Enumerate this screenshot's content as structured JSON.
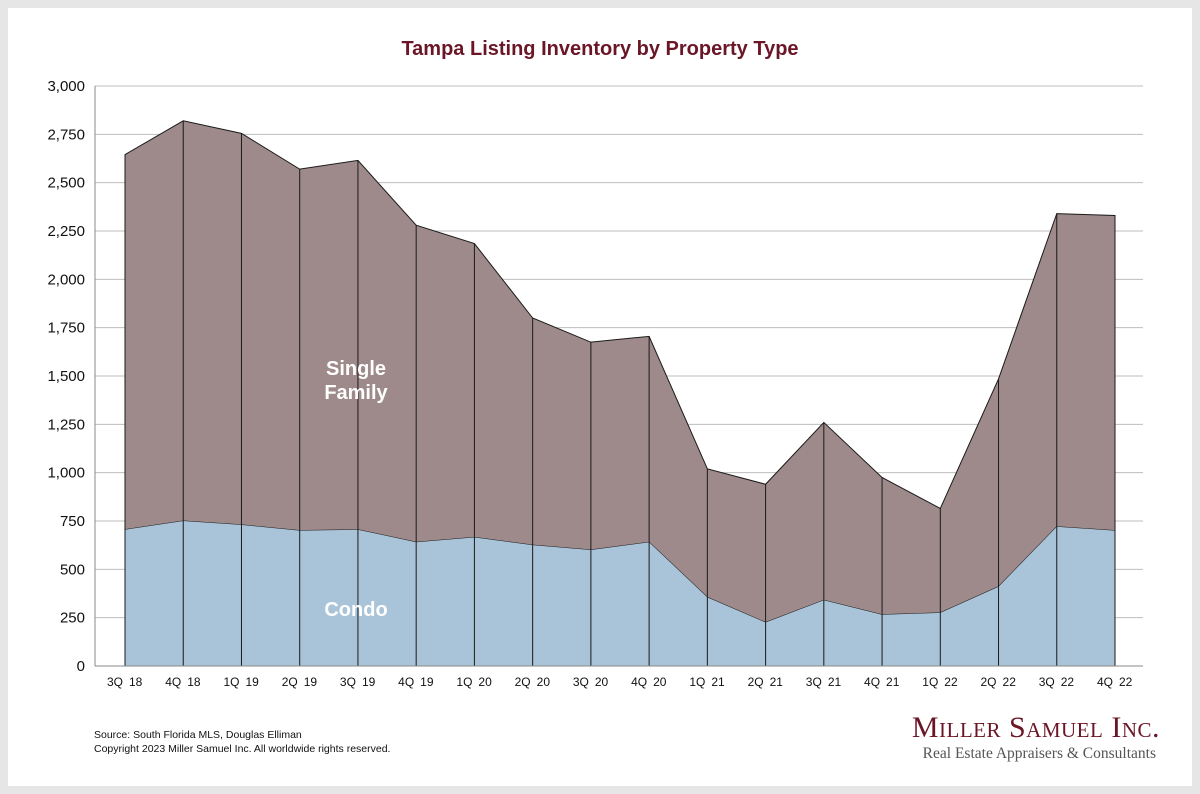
{
  "colors": {
    "single_family": "#9e8a8a",
    "condo": "#a9c4d9",
    "title": "#6b1626",
    "grid": "#bdbdbd",
    "divider": "#1a1a1a"
  },
  "chart_data": {
    "type": "area",
    "stacked": true,
    "title": "Tampa Listing Inventory by Property Type",
    "categories": [
      [
        "3Q",
        "18"
      ],
      [
        "4Q",
        "18"
      ],
      [
        "1Q",
        "19"
      ],
      [
        "2Q",
        "19"
      ],
      [
        "3Q",
        "19"
      ],
      [
        "4Q",
        "19"
      ],
      [
        "1Q",
        "20"
      ],
      [
        "2Q",
        "20"
      ],
      [
        "3Q",
        "20"
      ],
      [
        "4Q",
        "20"
      ],
      [
        "1Q",
        "21"
      ],
      [
        "2Q",
        "21"
      ],
      [
        "3Q",
        "21"
      ],
      [
        "4Q",
        "21"
      ],
      [
        "1Q",
        "22"
      ],
      [
        "2Q",
        "22"
      ],
      [
        "3Q",
        "22"
      ],
      [
        "4Q",
        "22"
      ]
    ],
    "series": [
      {
        "name": "Condo",
        "values": [
          705,
          750,
          730,
          700,
          705,
          640,
          665,
          625,
          600,
          640,
          355,
          225,
          340,
          265,
          275,
          410,
          720,
          700
        ]
      },
      {
        "name": "Single Family",
        "values": [
          1940,
          2070,
          2025,
          1870,
          1910,
          1640,
          1520,
          1175,
          1075,
          1065,
          665,
          715,
          920,
          710,
          540,
          1075,
          1620,
          1630
        ]
      }
    ],
    "area_labels": [
      {
        "series": "Single Family",
        "lines": [
          "Single",
          "Family"
        ]
      },
      {
        "series": "Condo",
        "lines": [
          "Condo"
        ]
      }
    ],
    "y_ticks": [
      "0",
      "250",
      "500",
      "750",
      "1,000",
      "1,250",
      "1,500",
      "1,750",
      "2,000",
      "2,250",
      "2,500",
      "2,750",
      "3,000"
    ],
    "ylim": [
      0,
      3000
    ],
    "y_step": 250,
    "grid": true,
    "legend": "none"
  },
  "footer": {
    "source": "Source: South Florida MLS, Douglas Elliman",
    "copyright": "Copyright 2023 Miller Samuel Inc.  All worldwide rights reserved."
  },
  "branding": {
    "name": "Miller Samuel Inc.",
    "tagline": "Real Estate Appraisers & Consultants"
  }
}
